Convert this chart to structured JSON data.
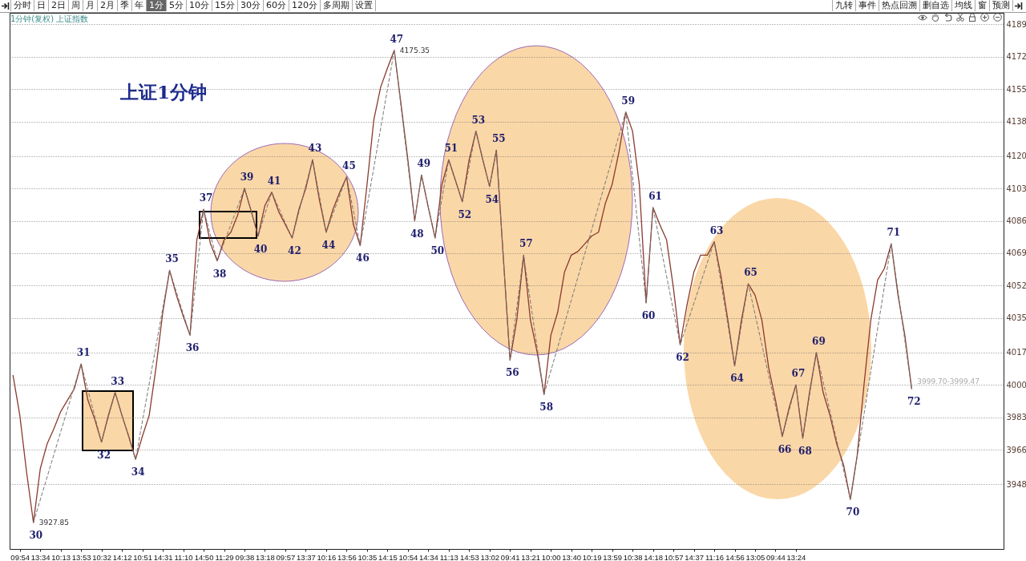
{
  "chart_data": {
    "type": "line",
    "title": "上证1分钟",
    "subtitle": "1分钟(复权) 上证指数",
    "categories": [
      null,
      "09:54",
      null,
      null,
      "13:34",
      null,
      null,
      "10:13",
      null,
      null,
      "13:53",
      null,
      null,
      "10:32",
      null,
      null,
      "14:12",
      null,
      null,
      "10:51",
      null,
      null,
      "14:31",
      null,
      null,
      "11:10",
      null,
      null,
      "14:50",
      null,
      null,
      "11:29",
      null,
      null,
      "09:38",
      null,
      null,
      "13:18",
      null,
      null,
      "09:57",
      null,
      null,
      "13:37",
      null,
      null,
      "10:16",
      null,
      null,
      "13:56",
      null,
      null,
      "10:35",
      null,
      null,
      "14:15",
      null,
      null,
      "10:54",
      null,
      null,
      "14:34",
      null,
      null,
      "11:13",
      null,
      null,
      "14:53",
      null,
      null,
      "13:02",
      null,
      null,
      "09:41",
      null,
      null,
      "13:21",
      null,
      null,
      "10:00",
      null,
      null,
      "13:40",
      null,
      null,
      "10:19",
      null,
      null,
      "13:59",
      null,
      null,
      "10:38",
      null,
      null,
      "14:18",
      null,
      null,
      "10:57",
      null,
      null,
      "14:37",
      null,
      null,
      "11:16",
      null,
      null,
      "14:56",
      null,
      null,
      "13:05",
      null,
      null,
      "09:44",
      null,
      null,
      "13:24",
      null,
      null,
      null,
      null,
      null,
      null,
      null,
      null,
      null,
      null,
      null,
      null,
      null,
      null,
      null,
      null,
      null,
      null,
      null,
      null,
      null,
      null,
      null,
      null,
      null,
      null,
      null,
      null,
      null,
      null
    ],
    "series": [
      {
        "color": "#8b3a2e",
        "values": [
          4005,
          3984,
          3954,
          3927.85,
          3956,
          3969,
          3977,
          3986,
          3992,
          3998,
          4011,
          3992,
          3982,
          3970,
          3984,
          3996,
          3984,
          3973,
          3961,
          3973,
          3984,
          4009,
          4038,
          4060,
          4047,
          4036,
          4026,
          4076,
          4092,
          4074,
          4065,
          4076,
          4080,
          4089,
          4103,
          4091,
          4078,
          4094,
          4101,
          4091,
          4084,
          4077,
          4092,
          4103,
          4118,
          4097,
          4080,
          4092,
          4101,
          4109,
          4084,
          4073,
          4105,
          4139,
          4156,
          4166,
          4175.35,
          4147,
          4118,
          4086,
          4110,
          4093,
          4077,
          4105,
          4118,
          4107,
          4096,
          4118,
          4133,
          4118,
          4104,
          4123,
          4068,
          4013,
          4034,
          4068,
          4034,
          4017,
          3995,
          4026,
          4038,
          4059,
          4068,
          4070,
          4074,
          4078,
          4080,
          4095,
          4105,
          4122,
          4143,
          4133,
          4105,
          4043,
          4093,
          4084,
          4076,
          4051,
          4021,
          4042,
          4059,
          4068,
          4068,
          4075,
          4057,
          4034,
          4010,
          4034,
          4053,
          4047,
          4034,
          4009,
          3992,
          3973,
          3988,
          4000,
          3972,
          3996,
          4017,
          3996,
          3984,
          3969,
          3958,
          3940,
          3963,
          4000,
          4034,
          4055,
          4061,
          4074,
          4047,
          4026,
          3998,
          null,
          null,
          null,
          null,
          null,
          null,
          null,
          null,
          null,
          null,
          null,
          null,
          null
        ],
        "value_labels": [
          null,
          null,
          null,
          "3927.85",
          null,
          null,
          null,
          null,
          null,
          null,
          null,
          null,
          null,
          null,
          null,
          null,
          null,
          null,
          null,
          null,
          null,
          null,
          null,
          null,
          null,
          null,
          null,
          null,
          null,
          null,
          null,
          null,
          null,
          null,
          null,
          null,
          null,
          null,
          null,
          null,
          null,
          null,
          null,
          null,
          null,
          null,
          null,
          null,
          null,
          null,
          null,
          null,
          null,
          null,
          null,
          null,
          "4175.35",
          null,
          null,
          null,
          null,
          null,
          null,
          null,
          null,
          null,
          null,
          null,
          null,
          null,
          null,
          null,
          null,
          null,
          null,
          null,
          null,
          null,
          null,
          null,
          null,
          null,
          null,
          null,
          null,
          null,
          null,
          null,
          null,
          null,
          null,
          null,
          null,
          null,
          null,
          null,
          null,
          null,
          null,
          null,
          null,
          null,
          null,
          null,
          null,
          null,
          null,
          null,
          null,
          null,
          null,
          null,
          null,
          null,
          null,
          null,
          null,
          null,
          null,
          null,
          null,
          null,
          null,
          null,
          null,
          null,
          null,
          null,
          null,
          null,
          null,
          null,
          null,
          null,
          null,
          null,
          null,
          null,
          null,
          null,
          null,
          null,
          null,
          null,
          null,
          null
        ]
      },
      {
        "color": "#777777",
        "line_style": "dashed",
        "values": [
          null,
          null,
          null,
          3927.85,
          null,
          null,
          null,
          null,
          null,
          null,
          4011,
          null,
          null,
          3970,
          null,
          3996,
          null,
          null,
          3961,
          null,
          null,
          null,
          null,
          4060,
          null,
          null,
          4026,
          null,
          4092,
          null,
          4065,
          null,
          null,
          null,
          4103,
          null,
          4078,
          null,
          4101,
          null,
          null,
          4077,
          null,
          null,
          4118,
          null,
          4080,
          null,
          null,
          4109,
          null,
          4073,
          null,
          null,
          null,
          null,
          4175.35,
          null,
          null,
          4086,
          4110,
          null,
          4077,
          null,
          4118,
          null,
          4096,
          null,
          4133,
          null,
          4104,
          4123,
          null,
          4013,
          null,
          4068,
          null,
          null,
          3995,
          null,
          null,
          null,
          null,
          null,
          null,
          null,
          null,
          null,
          null,
          null,
          4143,
          null,
          null,
          4043,
          4093,
          null,
          null,
          null,
          4021,
          null,
          null,
          null,
          null,
          4075,
          null,
          null,
          4010,
          null,
          4053,
          null,
          null,
          null,
          null,
          3973,
          null,
          4000,
          3972,
          null,
          4017,
          null,
          null,
          null,
          null,
          3940,
          null,
          null,
          null,
          null,
          null,
          4074,
          null,
          null,
          3998,
          null,
          null,
          null,
          null,
          null,
          null,
          null,
          null,
          null,
          null,
          null,
          null,
          null
        ]
      }
    ],
    "ylim": [
      3914,
      4195
    ],
    "yticks": [
      3948,
      3966,
      3983,
      4000,
      4017,
      4035,
      4052,
      4069,
      4086,
      4103,
      4120,
      4138,
      4155,
      4172,
      4189
    ],
    "grid": "y",
    "annotations": [
      "3999.70-3999.47",
      "30",
      "31",
      "32",
      "33",
      "34",
      "35",
      "36",
      "37",
      "38",
      "39",
      "40",
      "41",
      "42",
      "43",
      "44",
      "45",
      "46",
      "47",
      "48",
      "49",
      "50",
      "51",
      "52",
      "53",
      "54",
      "55",
      "56",
      "57",
      "58",
      "59",
      "60",
      "61",
      "62",
      "63",
      "64",
      "65",
      "66",
      "67",
      "68",
      "69",
      "70",
      "71",
      "72",
      "分时",
      "日",
      "2日",
      "周",
      "月",
      "2月",
      "季",
      "年",
      "1分",
      "5分",
      "10分",
      "15分",
      "30分",
      "60分",
      "120分",
      "多周期",
      "设置",
      "九转",
      "事件",
      "热点回溯",
      "删自选",
      "均线",
      "窗",
      "预测"
    ]
  }
}
